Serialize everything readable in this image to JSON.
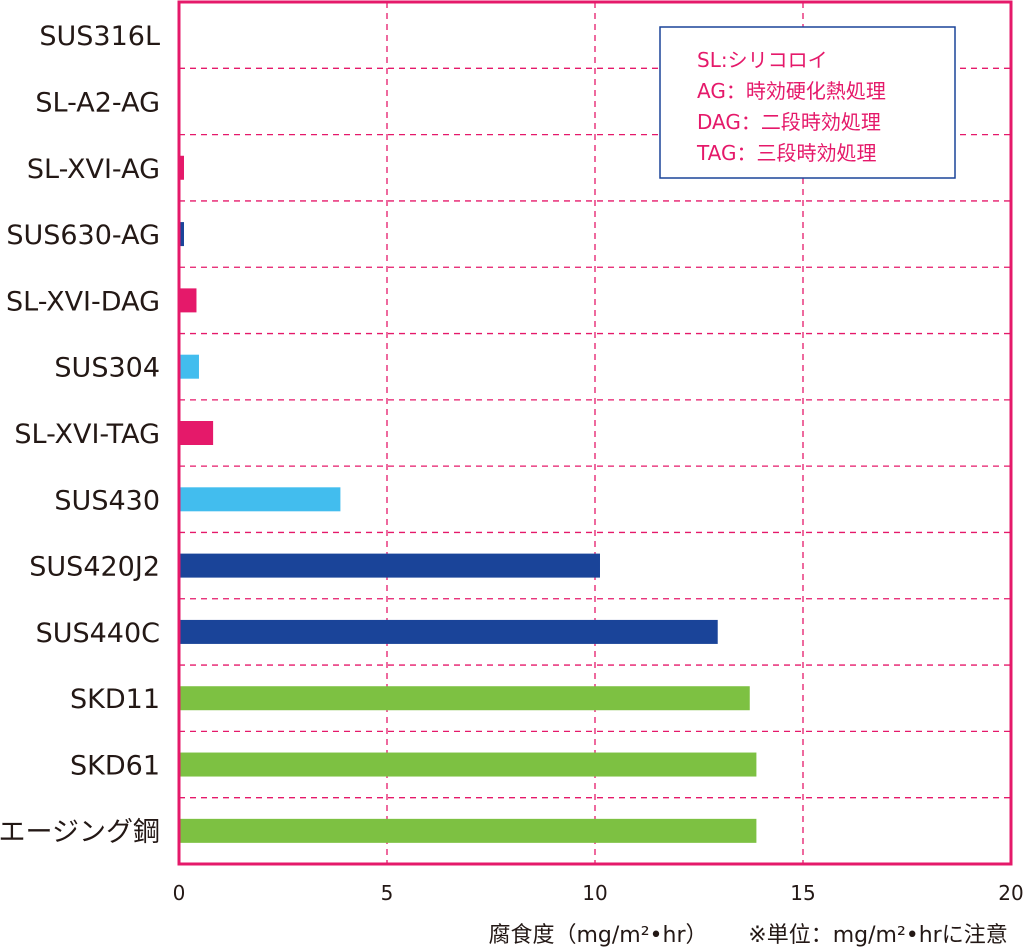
{
  "chart_data": {
    "type": "bar",
    "orientation": "horizontal",
    "categories": [
      "SUS316L",
      "SL-A2-AG",
      "SL-XVI-AG",
      "SUS630-AG",
      "SL-XVI-DAG",
      "SUS304",
      "SL-XVI-TAG",
      "SUS430",
      "SUS420J2",
      "SUS440C",
      "SKD11",
      "SKD61",
      "マルエージング鋼"
    ],
    "values": [
      0,
      0,
      0.12,
      0.12,
      0.42,
      0.48,
      0.82,
      3.88,
      10.12,
      12.95,
      13.72,
      13.88,
      13.88
    ],
    "bar_colors": [
      "#e5196a",
      "#e5196a",
      "#e5196a",
      "#1a4499",
      "#e5196a",
      "#42bdee",
      "#e5196a",
      "#42bdee",
      "#1a4499",
      "#1a4499",
      "#7dc142",
      "#7dc142",
      "#7dc142"
    ],
    "xlim": [
      0,
      20
    ],
    "xticks": [
      "0",
      "5",
      "10",
      "15",
      "20"
    ],
    "xlabel": "腐食度（mg/m²•hr）",
    "note": "※単位：mg/m²•hrに注意",
    "grid": true,
    "grid_style": "dashed",
    "grid_color": "#e5196a",
    "frame_color": "#e5196a",
    "legend": {
      "position": "top-right",
      "border_color": "#1a4499",
      "items": [
        "SL:シリコロイ",
        "AG：時効硬化熱処理",
        "DAG：二段時効処理",
        "TAG：三段時効処理"
      ]
    }
  }
}
